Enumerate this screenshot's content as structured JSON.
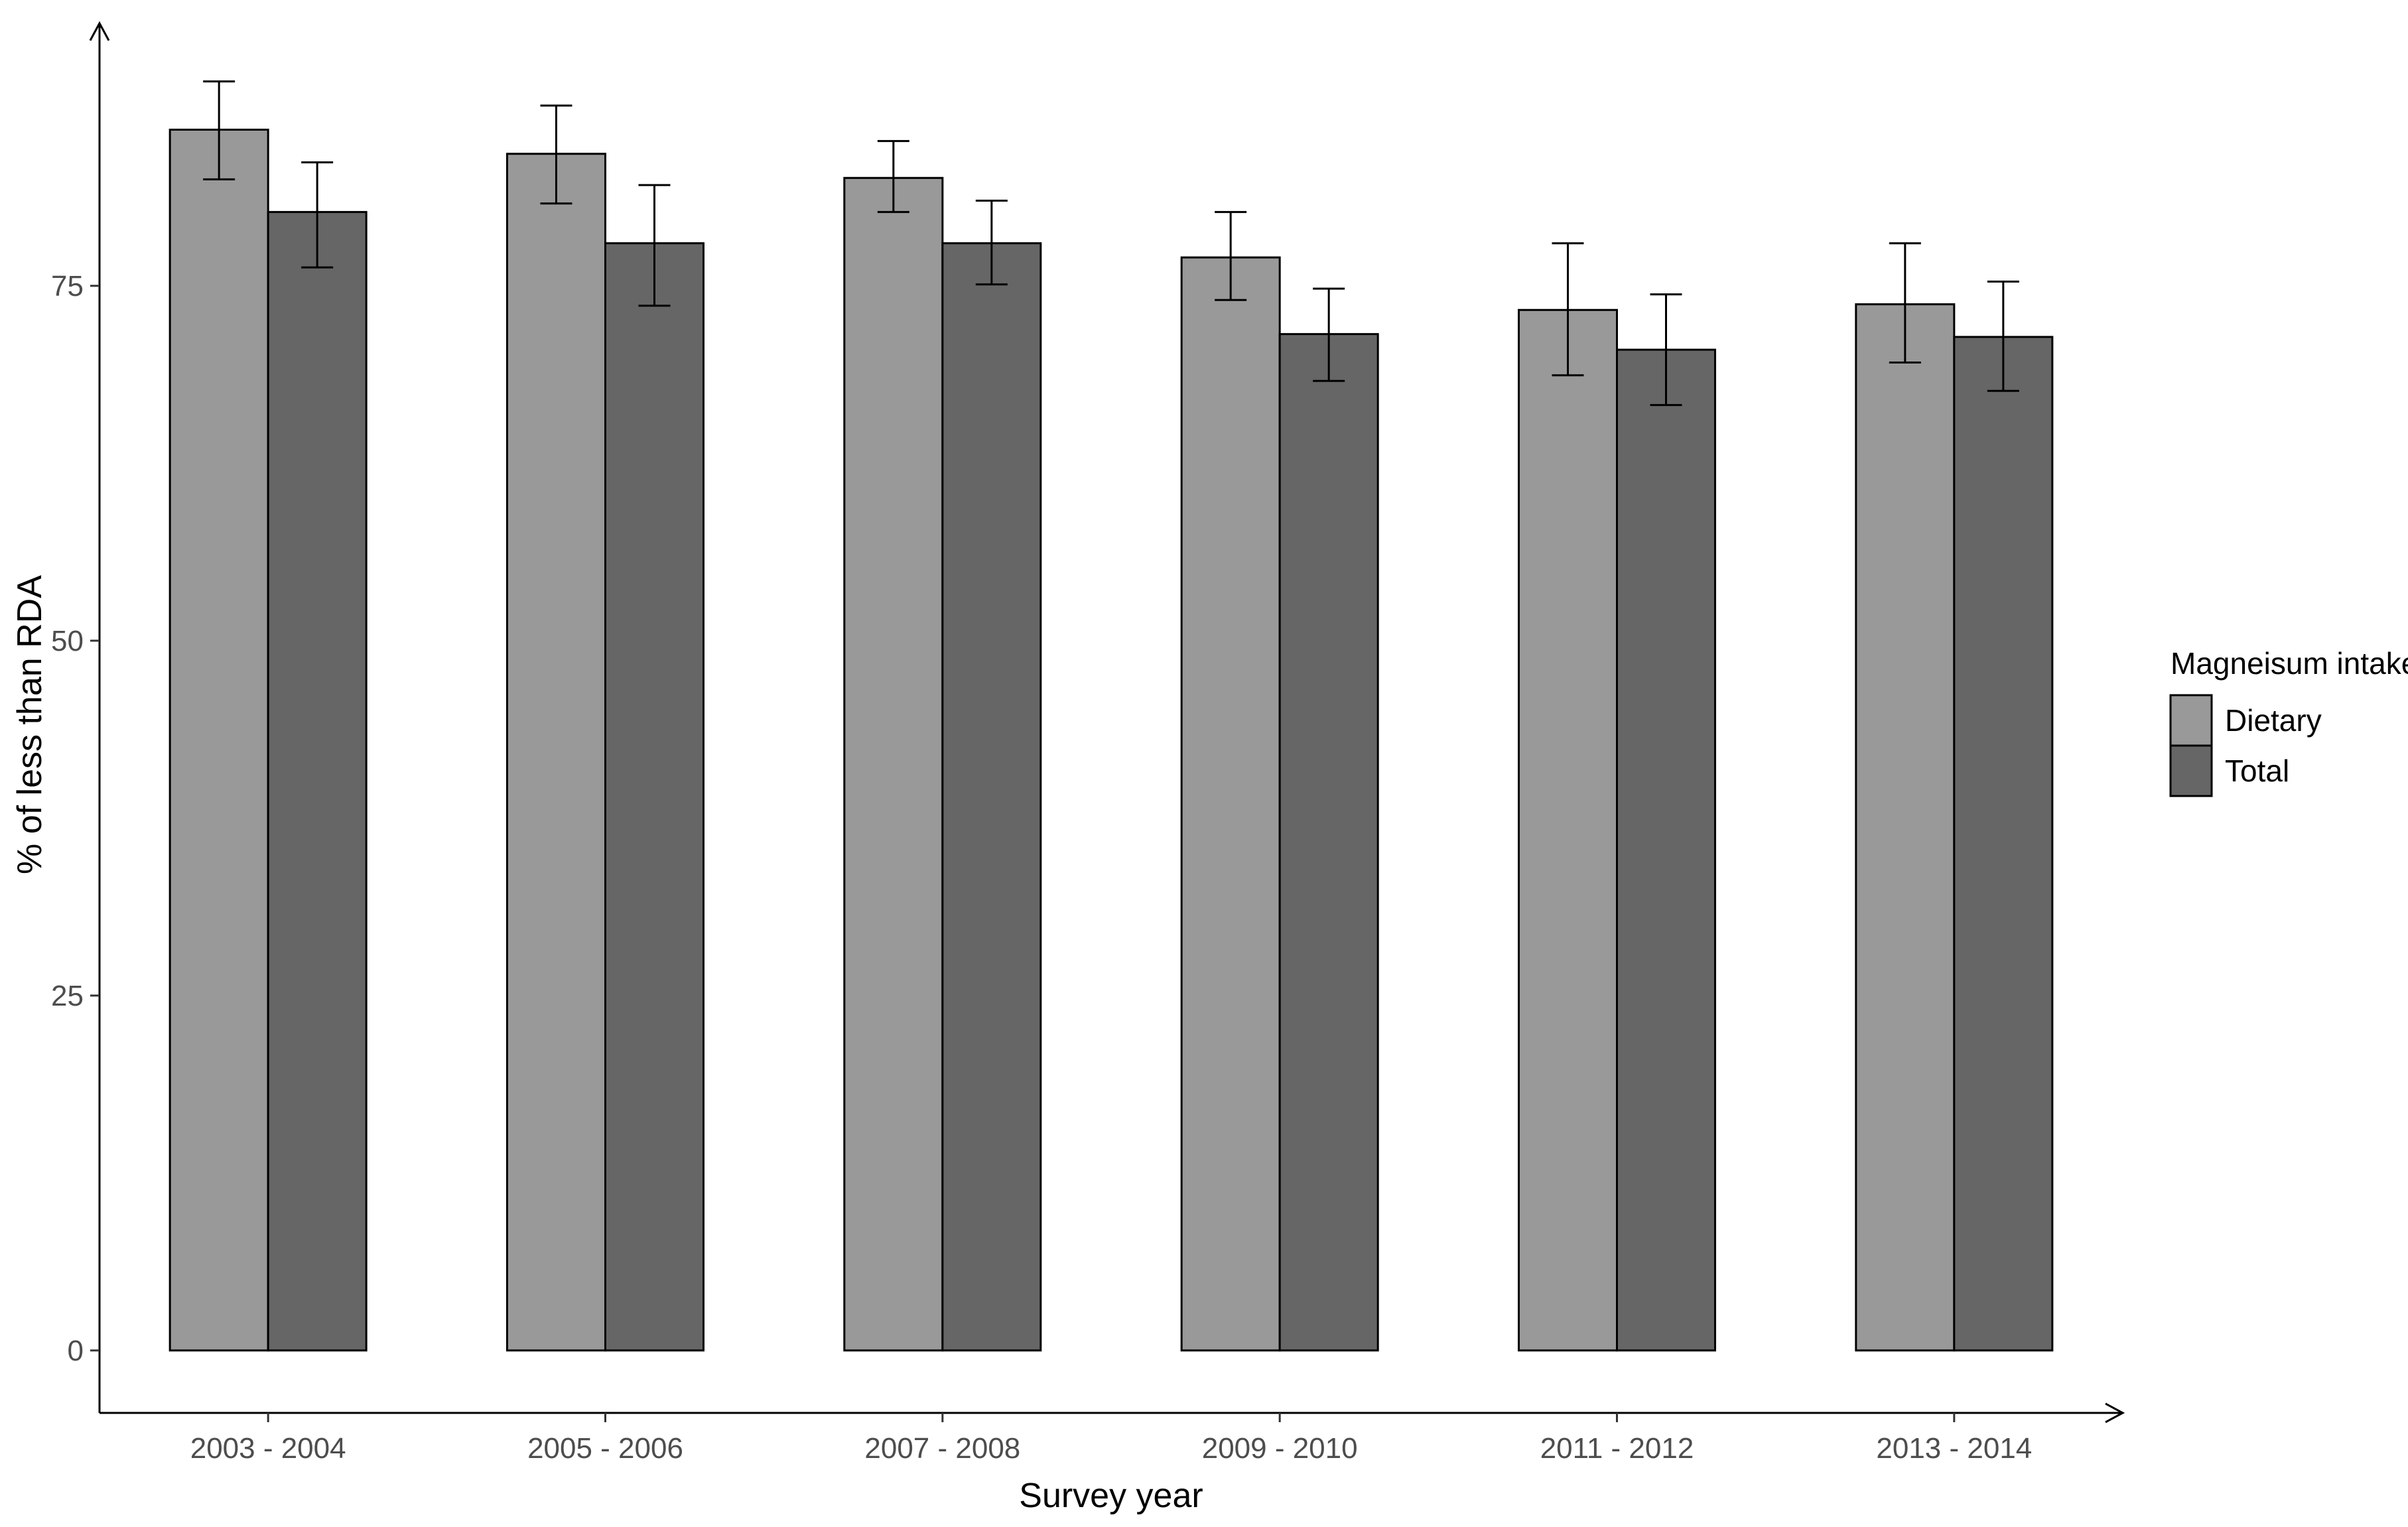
{
  "chart_data": {
    "type": "bar",
    "title": "",
    "xlabel": "Survey year",
    "ylabel": "% of less than RDA",
    "categories": [
      "2003 - 2004",
      "2005 - 2006",
      "2007 - 2008",
      "2009 - 2010",
      "2011 - 2012",
      "2013 - 2014"
    ],
    "series": [
      {
        "name": "Dietary",
        "color": "#999999",
        "values": [
          86.0,
          84.3,
          82.6,
          77.0,
          73.3,
          73.7
        ],
        "error_low": [
          82.5,
          80.8,
          80.2,
          74.0,
          68.7,
          69.6
        ],
        "error_high": [
          89.4,
          87.7,
          85.2,
          80.2,
          78.0,
          78.0
        ]
      },
      {
        "name": "Total",
        "color": "#666666",
        "values": [
          80.2,
          78.0,
          78.0,
          71.6,
          70.5,
          71.4
        ],
        "error_low": [
          76.3,
          73.6,
          75.1,
          68.3,
          66.6,
          67.6
        ],
        "error_high": [
          83.7,
          82.1,
          81.0,
          74.8,
          74.4,
          75.3
        ]
      }
    ],
    "yticks": [
      0,
      25,
      50,
      75
    ],
    "ylim": [
      -4.4,
      93.5
    ],
    "legend": {
      "title": "Magneisum intake",
      "position": "right"
    },
    "grid": false
  }
}
